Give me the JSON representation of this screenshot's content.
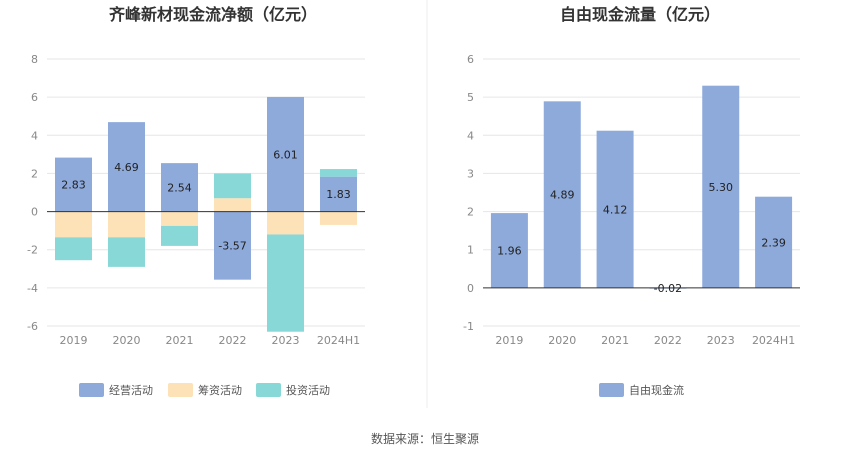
{
  "source_text": "数据来源：恒生聚源",
  "colors": {
    "operating": "#8eaadb",
    "financing": "#fde2b7",
    "investing": "#88d8d8",
    "fcf": "#8eaadb",
    "grid": "#e6e6e6",
    "zero_line": "#333333"
  },
  "chart_data": [
    {
      "type": "bar",
      "stacked": true,
      "title": "齐峰新材现金流净额（亿元）",
      "categories": [
        "2019",
        "2020",
        "2021",
        "2022",
        "2023",
        "2024H1"
      ],
      "ylim": [
        -6,
        8
      ],
      "yticks": [
        "8",
        "6",
        "4",
        "2",
        "0",
        "-2",
        "-4",
        "-6"
      ],
      "grid": true,
      "legend_position": "bottom",
      "series": [
        {
          "name": "经营活动",
          "values": [
            2.83,
            4.69,
            2.54,
            -3.57,
            6.01,
            1.83
          ],
          "labels": [
            "2.83",
            "4.69",
            "2.54",
            "-3.57",
            "6.01",
            "1.83"
          ]
        },
        {
          "name": "筹资活动",
          "values": [
            -1.35,
            -1.35,
            -0.75,
            0.7,
            -1.2,
            -0.7
          ]
        },
        {
          "name": "投资活动",
          "values": [
            -1.2,
            -1.55,
            -1.05,
            1.3,
            -5.1,
            0.4
          ]
        }
      ]
    },
    {
      "type": "bar",
      "title": "自由现金流量（亿元）",
      "categories": [
        "2019",
        "2020",
        "2021",
        "2022",
        "2023",
        "2024H1"
      ],
      "ylim": [
        -1,
        6
      ],
      "yticks": [
        "6",
        "5",
        "4",
        "3",
        "2",
        "1",
        "0",
        "-1"
      ],
      "grid": true,
      "legend_position": "bottom",
      "series": [
        {
          "name": "自由现金流",
          "values": [
            1.96,
            4.89,
            4.12,
            -0.02,
            5.3,
            2.39
          ],
          "labels": [
            "1.96",
            "4.89",
            "4.12",
            "-0.02",
            "5.30",
            "2.39"
          ]
        }
      ]
    }
  ]
}
